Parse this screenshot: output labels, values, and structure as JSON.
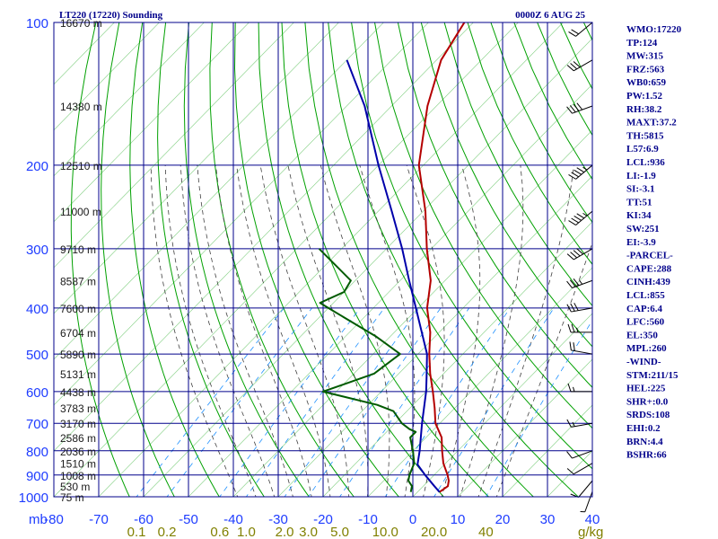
{
  "header": {
    "station": "LT220 (17220) Sounding",
    "time": "0000Z  6 AUG 25"
  },
  "axes": {
    "pressure_unit": "mb",
    "mixing_ratio_unit": "g/kg"
  },
  "chart_data": {
    "type": "line",
    "title": "LT220 (17220) Sounding",
    "y_axis": {
      "label": "mb",
      "scale": "log",
      "range": [
        1000,
        100
      ],
      "ticks": [
        100,
        200,
        300,
        400,
        500,
        600,
        700,
        800,
        900,
        1000
      ]
    },
    "x_axis": {
      "label": "",
      "ticks": [
        -80,
        -70,
        -60,
        -50,
        -40,
        -30,
        -20,
        -10,
        0,
        10,
        20,
        30,
        40
      ]
    },
    "mixing_ratio_ticks": [
      "0.1",
      "0.2",
      "0.6",
      "1.0",
      "2.0",
      "3.0",
      "5.0",
      "10.0",
      "20.0",
      "40"
    ],
    "height_labels": [
      {
        "p": 100,
        "label": "16670 m"
      },
      {
        "p": 150,
        "label": "14380 m"
      },
      {
        "p": 200,
        "label": "12510 m"
      },
      {
        "p": 250,
        "label": "11000 m"
      },
      {
        "p": 300,
        "label": "9710 m"
      },
      {
        "p": 350,
        "label": "8587 m"
      },
      {
        "p": 400,
        "label": "7600 m"
      },
      {
        "p": 450,
        "label": "6704 m"
      },
      {
        "p": 500,
        "label": "5890 m"
      },
      {
        "p": 550,
        "label": "5131 m"
      },
      {
        "p": 600,
        "label": "4438 m"
      },
      {
        "p": 650,
        "label": "3783 m"
      },
      {
        "p": 700,
        "label": "3170 m"
      },
      {
        "p": 750,
        "label": "2586 m"
      },
      {
        "p": 800,
        "label": "2036 m"
      },
      {
        "p": 850,
        "label": "1510 m"
      },
      {
        "p": 900,
        "label": "1008 m"
      },
      {
        "p": 950,
        "label": "530 m"
      },
      {
        "p": 1000,
        "label": "75 m"
      }
    ],
    "series": [
      {
        "name": "Temperature",
        "color": "#b40000",
        "points": [
          [
            977,
            24.9
          ],
          [
            950,
            25.5
          ],
          [
            925,
            24.5
          ],
          [
            900,
            23.0
          ],
          [
            850,
            19.5
          ],
          [
            800,
            16.5
          ],
          [
            750,
            13.5
          ],
          [
            700,
            9.0
          ],
          [
            650,
            5.5
          ],
          [
            600,
            1.5
          ],
          [
            550,
            -3.0
          ],
          [
            500,
            -7.5
          ],
          [
            450,
            -12.0
          ],
          [
            400,
            -18.0
          ],
          [
            350,
            -23.2
          ],
          [
            300,
            -31.0
          ],
          [
            250,
            -39.5
          ],
          [
            200,
            -51.0
          ],
          [
            150,
            -62.0
          ],
          [
            120,
            -69.0
          ],
          [
            100,
            -72.0
          ]
        ]
      },
      {
        "name": "Dewpoint",
        "color": "#005a00",
        "points": [
          [
            977,
            18.5
          ],
          [
            950,
            17.5
          ],
          [
            925,
            15.5
          ],
          [
            900,
            14.5
          ],
          [
            850,
            13.0
          ],
          [
            800,
            10.0
          ],
          [
            750,
            6.5
          ],
          [
            730,
            6.5
          ],
          [
            720,
            4.5
          ],
          [
            700,
            1.5
          ],
          [
            660,
            -3.0
          ],
          [
            640,
            -8.0
          ],
          [
            600,
            -23.0
          ],
          [
            580,
            -20.0
          ],
          [
            550,
            -15.5
          ],
          [
            500,
            -14.0
          ],
          [
            460,
            -23.0
          ],
          [
            400,
            -40.0
          ],
          [
            390,
            -43.0
          ],
          [
            370,
            -40.0
          ],
          [
            350,
            -41.0
          ],
          [
            300,
            -55.0
          ]
        ]
      },
      {
        "name": "Parcel",
        "color": "#0000aa",
        "points": [
          [
            977,
            24.9
          ],
          [
            950,
            22.5
          ],
          [
            900,
            18.0
          ],
          [
            855,
            14.0
          ],
          [
            800,
            11.5
          ],
          [
            700,
            6.0
          ],
          [
            600,
            0.0
          ],
          [
            560,
            -3.0
          ],
          [
            500,
            -8.0
          ],
          [
            400,
            -20.5
          ],
          [
            350,
            -28.0
          ],
          [
            300,
            -36.5
          ],
          [
            250,
            -47.0
          ],
          [
            200,
            -60.0
          ],
          [
            150,
            -76.0
          ],
          [
            120,
            -90.0
          ]
        ]
      }
    ],
    "wind_barbs": [
      {
        "p": 975,
        "dir": 200,
        "spd": 5
      },
      {
        "p": 925,
        "dir": 220,
        "spd": 10
      },
      {
        "p": 850,
        "dir": 240,
        "spd": 10
      },
      {
        "p": 800,
        "dir": 250,
        "spd": 10
      },
      {
        "p": 700,
        "dir": 260,
        "spd": 15
      },
      {
        "p": 600,
        "dir": 270,
        "spd": 15
      },
      {
        "p": 500,
        "dir": 280,
        "spd": 20
      },
      {
        "p": 450,
        "dir": 270,
        "spd": 25
      },
      {
        "p": 400,
        "dir": 260,
        "spd": 30
      },
      {
        "p": 350,
        "dir": 250,
        "spd": 35
      },
      {
        "p": 300,
        "dir": 240,
        "spd": 40
      },
      {
        "p": 250,
        "dir": 230,
        "spd": 45
      },
      {
        "p": 200,
        "dir": 230,
        "spd": 45
      },
      {
        "p": 150,
        "dir": 250,
        "spd": 40
      },
      {
        "p": 120,
        "dir": 240,
        "spd": 30
      },
      {
        "p": 100,
        "dir": 230,
        "spd": 20
      }
    ]
  },
  "indices": [
    "WMO:17220",
    "TP:124",
    "MW:315",
    "FRZ:563",
    "WB0:659",
    "PW:1.52",
    "RH:38.2",
    "MAXT:37.2",
    "TH:5815",
    "L57:6.9",
    "LCL:936",
    "LI:-1.9",
    "SI:-3.1",
    "TT:51",
    "KI:34",
    "SW:251",
    "EI:-3.9",
    "-PARCEL-",
    "CAPE:288",
    "CINH:439",
    "LCL:855",
    "CAP:6.4",
    "LFC:560",
    "EL:350",
    "MPL:260",
    "-WIND-",
    "STM:211/15",
    "HEL:225",
    "SHR+:0.0",
    "SRDS:108",
    "EHI:0.2",
    "BRN:4.4",
    "BSHR:66"
  ],
  "colors": {
    "isobar": "#00008b",
    "isotherm": "#1e3cff",
    "dry_adiabat": "#00a000",
    "moist_adiabat": "#404040",
    "mixing_ratio": "#1e90ff",
    "temperature": "#b40000",
    "dewpoint": "#005a00",
    "parcel": "#0000aa",
    "label": "#00008b"
  }
}
